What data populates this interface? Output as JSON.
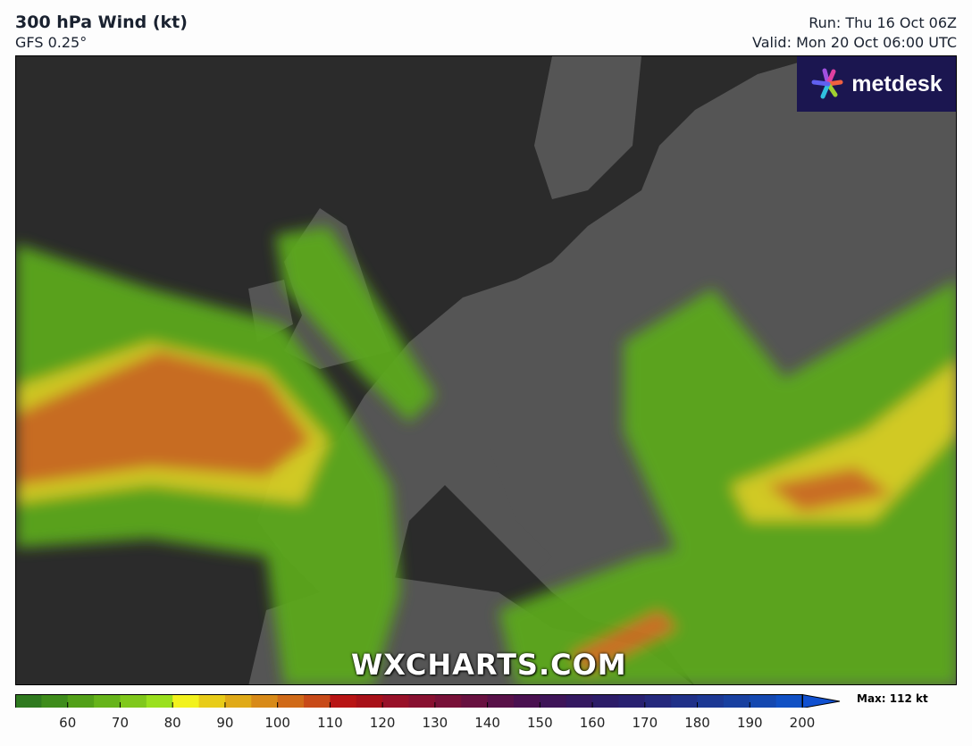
{
  "header": {
    "title": "300 hPa Wind (kt)",
    "model": "GFS 0.25°",
    "run": "Run: Thu 16 Oct 06Z",
    "valid": "Valid: Mon 20 Oct 06:00 UTC"
  },
  "logo": {
    "text": "metdesk"
  },
  "watermark": "WXCHARTS.COM",
  "legend": {
    "max_label": "Max: 112 kt",
    "ticks": [
      "60",
      "70",
      "80",
      "90",
      "100",
      "110",
      "120",
      "130",
      "140",
      "150",
      "160",
      "170",
      "180",
      "190",
      "200"
    ],
    "range": [
      50,
      200
    ],
    "step": 5,
    "colors": [
      "#2f7a1f",
      "#3e8c1b",
      "#52a018",
      "#66b41a",
      "#80c81c",
      "#9ae01e",
      "#f2f21e",
      "#e8cc18",
      "#e0aa18",
      "#d88a18",
      "#d06a18",
      "#c84a18",
      "#b81414",
      "#a81018",
      "#981028",
      "#881030",
      "#781038",
      "#681040",
      "#581048",
      "#4a1050",
      "#3e1458",
      "#341860",
      "#2c1c68",
      "#282070",
      "#24287c",
      "#203088",
      "#1c3894",
      "#1840a0",
      "#1448b0",
      "#1050c4"
    ]
  },
  "colors": {
    "ocean": "#2b2b2b",
    "land": "#555555",
    "logo_bg": "#1b1650"
  }
}
